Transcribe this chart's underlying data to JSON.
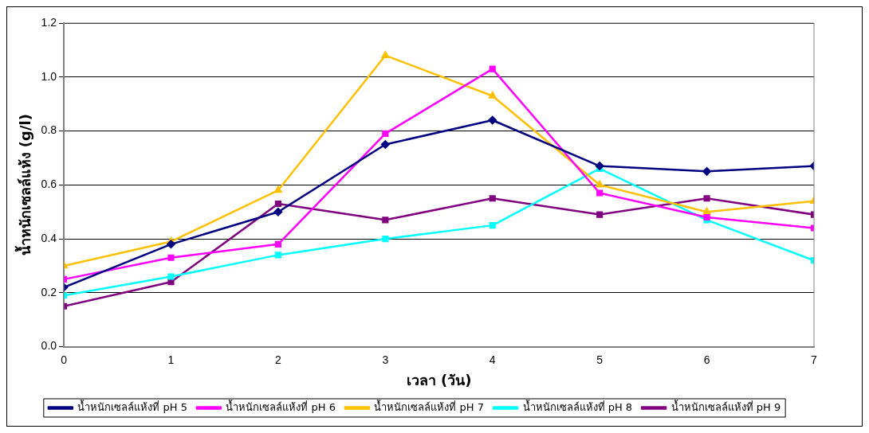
{
  "chart_data": {
    "type": "line",
    "xlabel": "เวลา (วัน)",
    "ylabel": "น้ำหนักเซลล์แห้ง (g/l)",
    "x": [
      0,
      1,
      2,
      3,
      4,
      5,
      6,
      7
    ],
    "xlim": [
      0,
      7
    ],
    "xticks": [
      0,
      1,
      2,
      3,
      4,
      5,
      6,
      7
    ],
    "ylim": [
      0,
      1.2
    ],
    "yticks": [
      {
        "value": 0,
        "label": "0.0"
      },
      {
        "value": 0.2,
        "label": "0.2"
      },
      {
        "value": 0.4,
        "label": "0.4"
      },
      {
        "value": 0.6,
        "label": "0.6"
      },
      {
        "value": 0.8,
        "label": "0.8"
      },
      {
        "value": 1,
        "label": "1.0"
      },
      {
        "value": 1.2,
        "label": "1.2"
      }
    ],
    "grid": "y",
    "legend": "bottom",
    "line_style": "solid",
    "series": [
      {
        "name": "น้ำหนักเซลล์แห้งที่ pH 5",
        "color": "#000080",
        "marker": "diamond",
        "values": [
          0.22,
          0.38,
          0.5,
          0.75,
          0.84,
          0.67,
          0.65,
          0.67
        ]
      },
      {
        "name": "น้ำหนักเซลล์แห้งที่ pH 6",
        "color": "#ff00ff",
        "marker": "square",
        "values": [
          0.25,
          0.33,
          0.38,
          0.79,
          1.03,
          0.57,
          0.48,
          0.44
        ]
      },
      {
        "name": "น้ำหนักเซลล์แห้งที่ pH 7",
        "color": "#ffc000",
        "marker": "triangle",
        "values": [
          0.3,
          0.39,
          0.58,
          1.08,
          0.93,
          0.6,
          0.5,
          0.54
        ]
      },
      {
        "name": "น้ำหนักเซลล์แห้งที่ pH 8",
        "color": "#00ffff",
        "marker": "square",
        "values": [
          0.19,
          0.26,
          0.34,
          0.4,
          0.45,
          0.66,
          0.47,
          0.32
        ]
      },
      {
        "name": "น้ำหนักเซลล์แห้งที่ pH 9",
        "color": "#800080",
        "marker": "square",
        "values": [
          0.15,
          0.24,
          0.53,
          0.47,
          0.55,
          0.49,
          0.55,
          0.49
        ]
      }
    ]
  }
}
